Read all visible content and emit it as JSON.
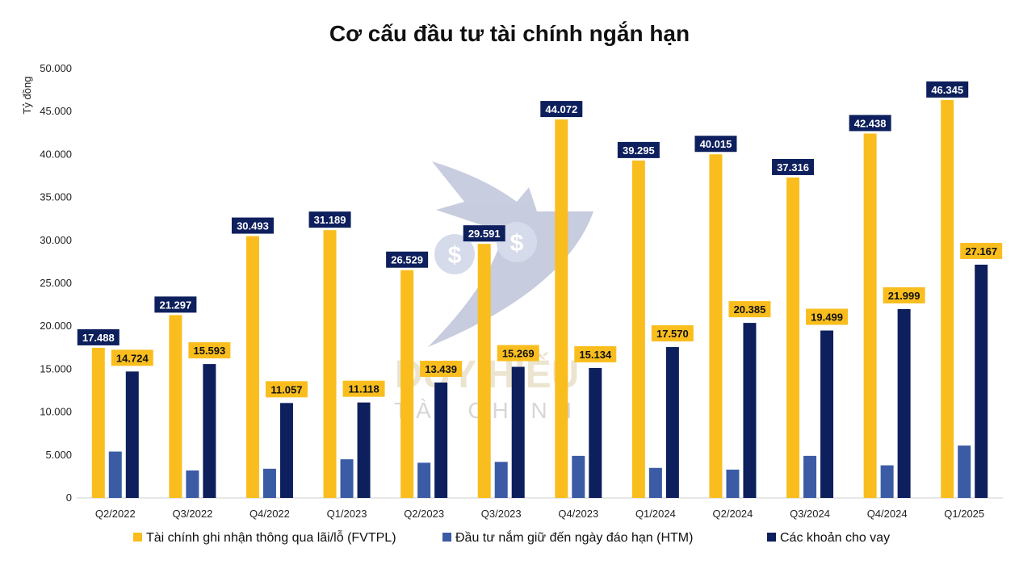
{
  "chart_data": {
    "type": "bar",
    "title": "Cơ cấu đầu tư tài chính ngắn hạn",
    "ylabel": "Tỷ đồng",
    "xlabel": "",
    "ylim": [
      0,
      50000
    ],
    "yticks": [
      0,
      5000,
      10000,
      15000,
      20000,
      25000,
      30000,
      35000,
      40000,
      45000,
      50000
    ],
    "ytick_labels": [
      "0",
      "5.000",
      "10.000",
      "15.000",
      "20.000",
      "25.000",
      "30.000",
      "35.000",
      "40.000",
      "45.000",
      "50.000"
    ],
    "categories": [
      "Q2/2022",
      "Q3/2022",
      "Q4/2022",
      "Q1/2023",
      "Q2/2023",
      "Q3/2023",
      "Q4/2023",
      "Q1/2024",
      "Q2/2024",
      "Q3/2024",
      "Q4/2024",
      "Q1/2025"
    ],
    "series": [
      {
        "name": "Tài chính ghi nhận thông qua lãi/lỗ (FVTPL)",
        "color": "#F9BE1E",
        "values": [
          17488,
          21297,
          30493,
          31189,
          26529,
          29591,
          44072,
          39295,
          40015,
          37316,
          42438,
          46345
        ],
        "labels": [
          "17.488",
          "21.297",
          "30.493",
          "31.189",
          "26.529",
          "29.591",
          "44.072",
          "39.295",
          "40.015",
          "37.316",
          "42.438",
          "46.345"
        ]
      },
      {
        "name": "Đầu tư nắm giữ đến ngày đáo hạn (HTM)",
        "color": "#3B5BA5",
        "values": [
          5400,
          3200,
          3400,
          4500,
          4100,
          4200,
          4900,
          3500,
          3300,
          4900,
          3800,
          6100
        ]
      },
      {
        "name": "Các khoản cho vay",
        "color": "#0D1F5C",
        "values": [
          14724,
          15593,
          11057,
          11118,
          13439,
          15269,
          15134,
          17570,
          20385,
          19499,
          21999,
          27167
        ],
        "labels": [
          "14.724",
          "15.593",
          "11.057",
          "11.118",
          "13.439",
          "15.269",
          "15.134",
          "17.570",
          "20.385",
          "19.499",
          "21.999",
          "27.167"
        ]
      }
    ],
    "fvtpl_label_style": {
      "background": "#0D1F5C",
      "text_color": "#FFFFFF"
    },
    "loans_label_style": {
      "background": "#F9BE1E",
      "text_color": "#111111"
    },
    "legend": "bottom",
    "grid": false
  },
  "watermark": {
    "brand": "DUY HIẾU",
    "sub": "TÀI CHÍNH",
    "icon": "shield-dollar-icon"
  }
}
